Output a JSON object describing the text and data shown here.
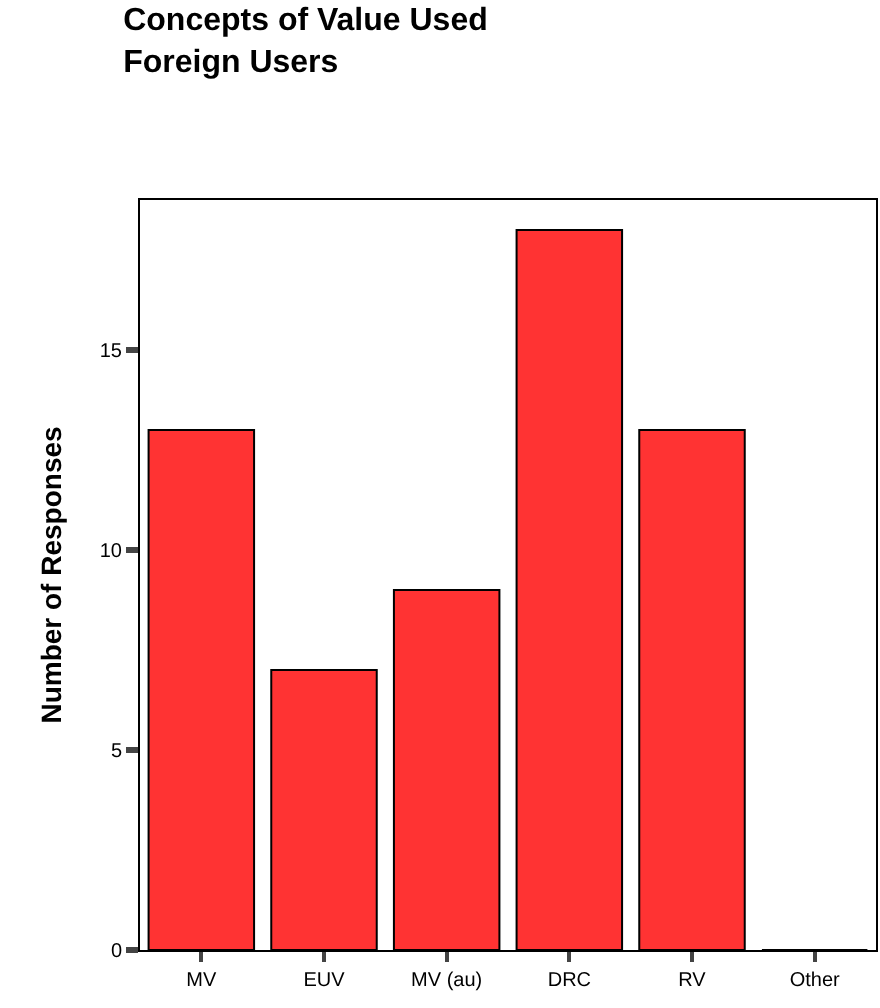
{
  "chart_data": {
    "type": "bar",
    "title": "Concepts of Value Used\nForeign Users",
    "ylabel": "Number of Responses",
    "categories": [
      "MV",
      "EUV",
      "MV (au)",
      "DRC",
      "RV",
      "Other"
    ],
    "values": [
      13,
      7,
      9,
      18,
      13,
      0
    ],
    "color": "#ff3333",
    "ylim": [
      0,
      18.75
    ],
    "yticks": [
      0,
      5,
      10,
      15
    ]
  }
}
